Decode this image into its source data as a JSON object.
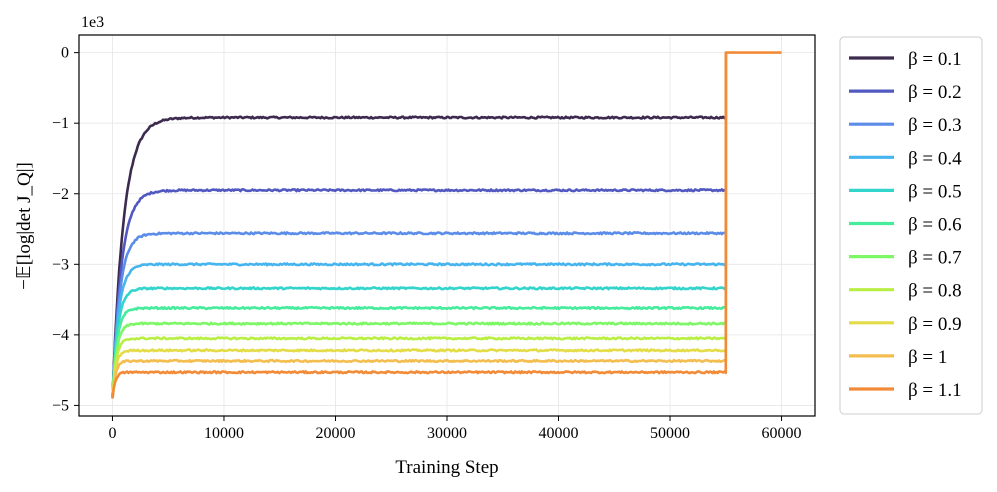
{
  "chart_data": {
    "type": "line",
    "xlabel": "Training Step",
    "ylabel": "−𝔼[log|det J_Q|]",
    "yscale_note": "1e3",
    "xlim": [
      -3000,
      63000
    ],
    "ylim": [
      -5.15,
      0.25
    ],
    "xticks": [
      0,
      10000,
      20000,
      30000,
      40000,
      50000,
      60000
    ],
    "yticks": [
      0,
      -1,
      -2,
      -3,
      -4,
      -5
    ],
    "grid": true,
    "legend_position": "outside-right",
    "start_value": -4.9,
    "switch_step": 55000,
    "end_step": 60000,
    "end_value": 0.0,
    "series": [
      {
        "name": "β = 0.1",
        "color": "#3d2a4f",
        "plateau": -0.92,
        "tau": 1000
      },
      {
        "name": "β = 0.2",
        "color": "#5158bf",
        "plateau": -1.95,
        "tau": 800
      },
      {
        "name": "β = 0.3",
        "color": "#5b8ce8",
        "plateau": -2.56,
        "tau": 650
      },
      {
        "name": "β = 0.4",
        "color": "#46b4ef",
        "plateau": -3.0,
        "tau": 550
      },
      {
        "name": "β = 0.5",
        "color": "#33d4cc",
        "plateau": -3.34,
        "tau": 480
      },
      {
        "name": "β = 0.6",
        "color": "#45ec9c",
        "plateau": -3.62,
        "tau": 420
      },
      {
        "name": "β = 0.7",
        "color": "#7cf765",
        "plateau": -3.84,
        "tau": 380
      },
      {
        "name": "β = 0.8",
        "color": "#b9ef45",
        "plateau": -4.05,
        "tau": 340
      },
      {
        "name": "β = 0.9",
        "color": "#e3dc48",
        "plateau": -4.22,
        "tau": 300
      },
      {
        "name": "β = 1",
        "color": "#f4bd4f",
        "plateau": -4.37,
        "tau": 270
      },
      {
        "name": "β = 1.1",
        "color": "#f28b37",
        "plateau": -4.53,
        "tau": 240
      }
    ]
  }
}
